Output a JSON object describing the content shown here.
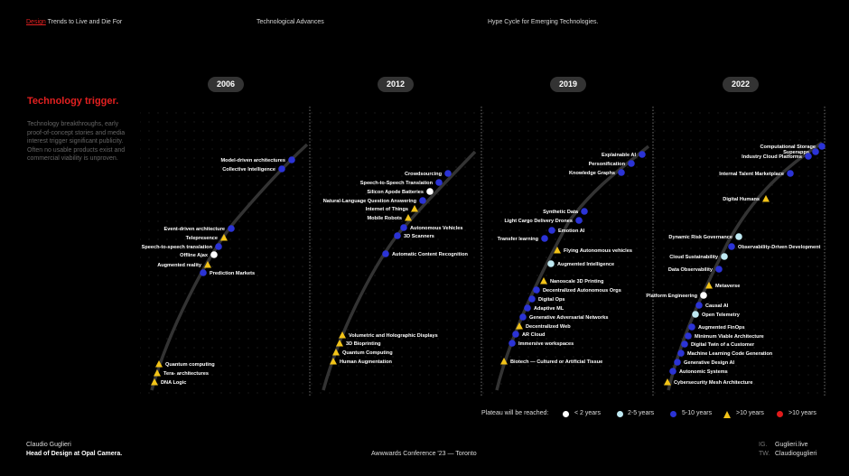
{
  "header": {
    "left_highlight": "Design",
    "left_rest": " Trends to Live and Die For",
    "center": "Technological Advances",
    "right": "Hype Cycle for Emerging Technologies."
  },
  "sidebar": {
    "title": "Technology trigger.",
    "description": "Technology breakthroughs, early proof-of-concept stories and media interest trigger significant publicity. Often no usable products exist and commercial viability is unproven."
  },
  "years": [
    "2006",
    "2012",
    "2019",
    "2022"
  ],
  "colors": {
    "lt2": "#ffffff",
    "y2to5": "#bfe9f2",
    "y5to10": "#2b33d6",
    "gt10": "#f2c318",
    "obsolete": "#e11b1b"
  },
  "panels": [
    {
      "year": "2006",
      "items": [
        {
          "label": "Model-driven architectures",
          "type": "y5to10"
        },
        {
          "label": "Collective Intelligence",
          "type": "y5to10"
        },
        {
          "label": "Event-driven architecture",
          "type": "y5to10"
        },
        {
          "label": "Telepresence",
          "type": "gt10"
        },
        {
          "label": "Speech-to-speech translation",
          "type": "y5to10"
        },
        {
          "label": "Offline Ajax",
          "type": "lt2"
        },
        {
          "label": "Augmented reality",
          "type": "gt10"
        },
        {
          "label": "Prediction Markets",
          "type": "y5to10"
        },
        {
          "label": "Quantum computing",
          "type": "gt10"
        },
        {
          "label": "Tera- architectures",
          "type": "gt10"
        },
        {
          "label": "DNA Logic",
          "type": "gt10"
        }
      ]
    },
    {
      "year": "2012",
      "items": [
        {
          "label": "Crowdsourcing",
          "type": "y5to10"
        },
        {
          "label": "Speech-to-Speech Translation",
          "type": "y5to10"
        },
        {
          "label": "Silicon Apode Batteries",
          "type": "lt2"
        },
        {
          "label": "Natural-Language Question Answering",
          "type": "y5to10"
        },
        {
          "label": "Internet of Things",
          "type": "gt10"
        },
        {
          "label": "Mobile Robots",
          "type": "gt10"
        },
        {
          "label": "Autonomous Vehicles",
          "type": "y5to10"
        },
        {
          "label": "3D Scanners",
          "type": "y5to10"
        },
        {
          "label": "Automatic Content Recognition",
          "type": "y5to10"
        },
        {
          "label": "Volumetric and Holographic Displays",
          "type": "gt10"
        },
        {
          "label": "3D Bioprinting",
          "type": "gt10"
        },
        {
          "label": "Quantum Computing",
          "type": "gt10"
        },
        {
          "label": "Human Augmentation",
          "type": "gt10"
        }
      ]
    },
    {
      "year": "2019",
      "items": [
        {
          "label": "Explainable AI",
          "type": "y5to10"
        },
        {
          "label": "Personification",
          "type": "y5to10"
        },
        {
          "label": "Knowledge Graphs",
          "type": "y5to10"
        },
        {
          "label": "Synthetic Data",
          "type": "y5to10"
        },
        {
          "label": "Light Cargo Delivery Drones",
          "type": "y5to10"
        },
        {
          "label": "Emotion AI",
          "type": "y5to10"
        },
        {
          "label": "Transfer learning",
          "type": "y5to10"
        },
        {
          "label": "Flying Autonomous vehicles",
          "type": "gt10"
        },
        {
          "label": "Augmented Intelligence",
          "type": "y2to5"
        },
        {
          "label": "Nanoscale 3D Printing",
          "type": "gt10"
        },
        {
          "label": "Decentralized Autonomous Orgs",
          "type": "y5to10"
        },
        {
          "label": "Digital Ops",
          "type": "y5to10"
        },
        {
          "label": "Adaptive ML",
          "type": "y5to10"
        },
        {
          "label": "Generative Adversarial Networks",
          "type": "y5to10"
        },
        {
          "label": "Decentralized Web",
          "type": "gt10"
        },
        {
          "label": "AR Cloud",
          "type": "y5to10"
        },
        {
          "label": "Immersive workspaces",
          "type": "y5to10"
        },
        {
          "label": "Biotech — Cultured or Artificial Tissue",
          "type": "gt10"
        }
      ]
    },
    {
      "year": "2022",
      "items": [
        {
          "label": "Computational Storage",
          "type": "y5to10"
        },
        {
          "label": "Superapps",
          "type": "y5to10"
        },
        {
          "label": "Industry Cloud Platforms",
          "type": "y5to10"
        },
        {
          "label": "Internal Talent Marketplace",
          "type": "y5to10"
        },
        {
          "label": "Digital Humans",
          "type": "gt10"
        },
        {
          "label": "Dynamic Risk Governance",
          "type": "y2to5"
        },
        {
          "label": "Observability-Driven Development",
          "type": "y5to10"
        },
        {
          "label": "Cloud Sustainability",
          "type": "y2to5"
        },
        {
          "label": "Data Observability",
          "type": "y5to10"
        },
        {
          "label": "Metaverse",
          "type": "gt10"
        },
        {
          "label": "Platform Engineering",
          "type": "lt2"
        },
        {
          "label": "Causal AI",
          "type": "y5to10"
        },
        {
          "label": "Open Telemetry",
          "type": "y2to5"
        },
        {
          "label": "Augmented FinOps",
          "type": "y5to10"
        },
        {
          "label": "Minimum Viable Architecture",
          "type": "y5to10"
        },
        {
          "label": "Digital Twin of a Customer",
          "type": "y5to10"
        },
        {
          "label": "Machine Learning Code Generation",
          "type": "y5to10"
        },
        {
          "label": "Generative Design AI",
          "type": "y5to10"
        },
        {
          "label": "Autonomic Systems",
          "type": "y5to10"
        },
        {
          "label": "Cybersecurity Mesh Architecture",
          "type": "gt10"
        }
      ]
    }
  ],
  "legend": {
    "title": "Plateau will be reached:",
    "items": [
      {
        "label": "< 2 years",
        "type": "lt2"
      },
      {
        "label": "2-5 years",
        "type": "y2to5"
      },
      {
        "label": "5-10 years",
        "type": "y5to10"
      },
      {
        "label": ">10 years",
        "type": "gt10"
      },
      {
        "label": ">10 years",
        "type": "obsolete"
      }
    ]
  },
  "footer": {
    "name": "Claudio Guglieri",
    "role": "Head of Design at Opal Camera.",
    "event": "Awwwards Conference '23 — Toronto",
    "social": [
      {
        "network": "IG.",
        "handle": "Guglieri.live"
      },
      {
        "network": "TW.",
        "handle": "Claudioguglieri"
      }
    ]
  }
}
